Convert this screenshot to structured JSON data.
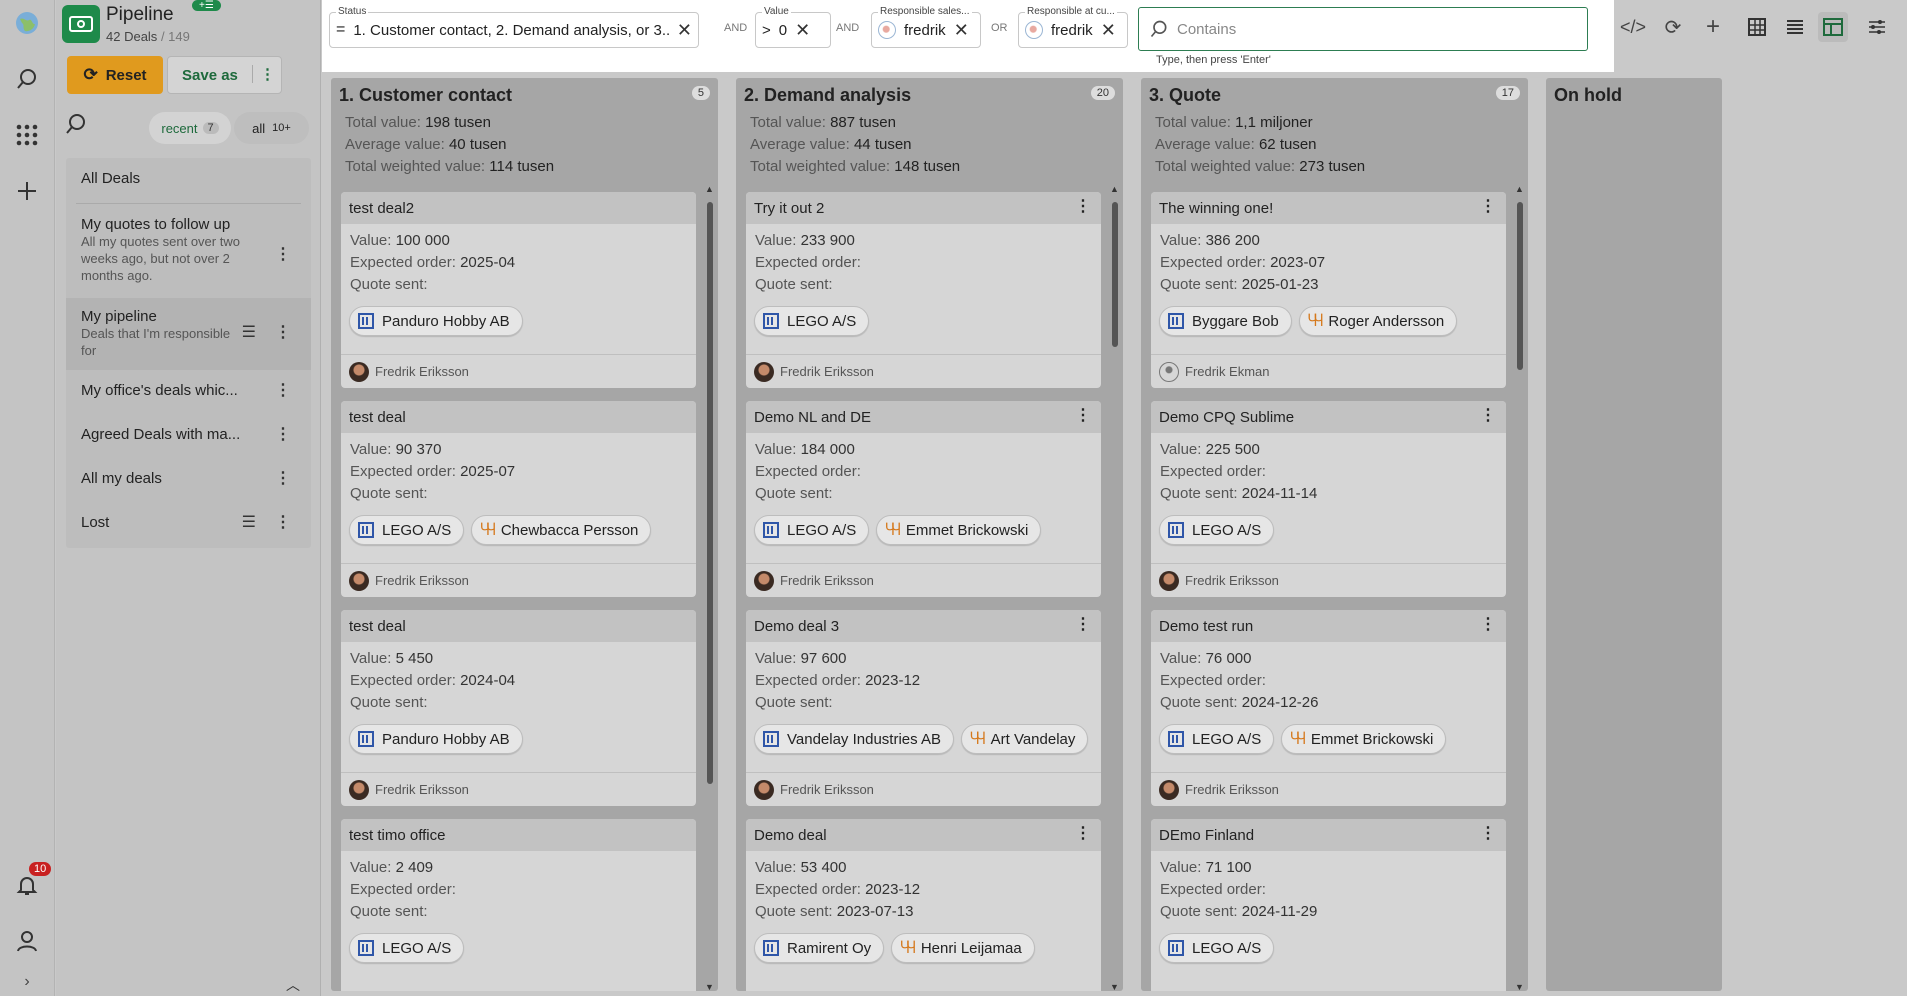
{
  "app": {
    "title": "Pipeline",
    "deals_count": "42 Deals",
    "total": "/ 149",
    "notif_count": "10",
    "add_badge": "+☰"
  },
  "buttons": {
    "reset": "Reset",
    "save_as": "Save as"
  },
  "tabs": {
    "recent": "recent",
    "recent_count": "7",
    "all": "all",
    "all_count": "10+"
  },
  "lists": [
    {
      "label": "All Deals",
      "sub": ""
    },
    {
      "label": "My quotes to follow up",
      "sub": "All my quotes sent over two weeks ago, but not over 2 months ago."
    },
    {
      "label": "My pipeline",
      "sub": "Deals that I'm responsible for"
    },
    {
      "label": "My office's deals whic...",
      "sub": ""
    },
    {
      "label": "Agreed Deals with ma...",
      "sub": ""
    },
    {
      "label": "All my deals",
      "sub": ""
    },
    {
      "label": "Lost",
      "sub": ""
    }
  ],
  "filters": {
    "status": {
      "label": "Status",
      "value": "1. Customer contact, 2. Demand analysis, or 3..."
    },
    "op1": "AND",
    "value": {
      "label": "Value",
      "op": ">",
      "value": "0"
    },
    "op2": "AND",
    "sales": {
      "label": "Responsible sales...",
      "value": "fredrik"
    },
    "op3": "OR",
    "cust": {
      "label": "Responsible at cu...",
      "value": "fredrik"
    },
    "search_placeholder": "Contains",
    "hint": "Type, then press 'Enter'"
  },
  "columns": [
    {
      "title": "1. Customer contact",
      "count": "5",
      "total": "198 tusen",
      "avg": "40 tusen",
      "weighted": "114 tusen",
      "cards": [
        {
          "title": "test deal2",
          "value": "100 000",
          "order": "2025-04",
          "quote": "",
          "company": "Panduro Hobby AB",
          "person": "",
          "owner": "Fredrik Eriksson"
        },
        {
          "title": "test deal",
          "value": "90 370",
          "order": "2025-07",
          "quote": "",
          "company": "LEGO A/S",
          "person": "Chewbacca Persson",
          "owner": "Fredrik Eriksson"
        },
        {
          "title": "test deal",
          "value": "5 450",
          "order": "2024-04",
          "quote": "",
          "company": "Panduro Hobby AB",
          "person": "",
          "owner": "Fredrik Eriksson"
        },
        {
          "title": "test timo office",
          "value": "2 409",
          "order": "",
          "quote": "",
          "company": "LEGO A/S",
          "person": "",
          "owner": ""
        }
      ]
    },
    {
      "title": "2. Demand analysis",
      "count": "20",
      "total": "887 tusen",
      "avg": "44 tusen",
      "weighted": "148 tusen",
      "cards": [
        {
          "title": "Try it out 2",
          "value": "233 900",
          "order": "",
          "quote": "",
          "company": "LEGO A/S",
          "person": "",
          "owner": "Fredrik Eriksson"
        },
        {
          "title": "Demo NL and DE",
          "value": "184 000",
          "order": "",
          "quote": "",
          "company": "LEGO A/S",
          "person": "Emmet Brickowski",
          "owner": "Fredrik Eriksson"
        },
        {
          "title": "Demo deal 3",
          "value": "97 600",
          "order": "2023-12",
          "quote": "",
          "company": "Vandelay Industries AB",
          "person": "Art Vandelay",
          "owner": "Fredrik Eriksson"
        },
        {
          "title": "Demo deal",
          "value": "53 400",
          "order": "2023-12",
          "quote": "2023-07-13",
          "company": "Ramirent Oy",
          "person": "Henri Leijamaa",
          "owner": ""
        }
      ]
    },
    {
      "title": "3. Quote",
      "count": "17",
      "total": "1,1 miljoner",
      "avg": "62 tusen",
      "weighted": "273 tusen",
      "cards": [
        {
          "title": "The winning one!",
          "value": "386 200",
          "order": "2023-07",
          "quote": "2025-01-23",
          "company": "Byggare Bob",
          "person": "Roger Andersson",
          "owner": "Fredrik Ekman"
        },
        {
          "title": "Demo CPQ Sublime",
          "value": "225 500",
          "order": "",
          "quote": "2024-11-14",
          "company": "LEGO A/S",
          "person": "",
          "owner": "Fredrik Eriksson"
        },
        {
          "title": "Demo test run",
          "value": "76 000",
          "order": "",
          "quote": "2024-12-26",
          "company": "LEGO A/S",
          "person": "Emmet Brickowski",
          "owner": "Fredrik Eriksson"
        },
        {
          "title": "DEmo Finland",
          "value": "71 100",
          "order": "",
          "quote": "2024-11-29",
          "company": "LEGO A/S",
          "person": "",
          "owner": ""
        }
      ]
    },
    {
      "title": "On hold",
      "count": "",
      "total": "",
      "avg": "",
      "weighted": "",
      "cards": []
    }
  ],
  "labels": {
    "total": "Total value:",
    "avg": "Average value:",
    "weighted": "Total weighted value:",
    "value": "Value:",
    "order": "Expected order:",
    "quote": "Quote sent:"
  }
}
